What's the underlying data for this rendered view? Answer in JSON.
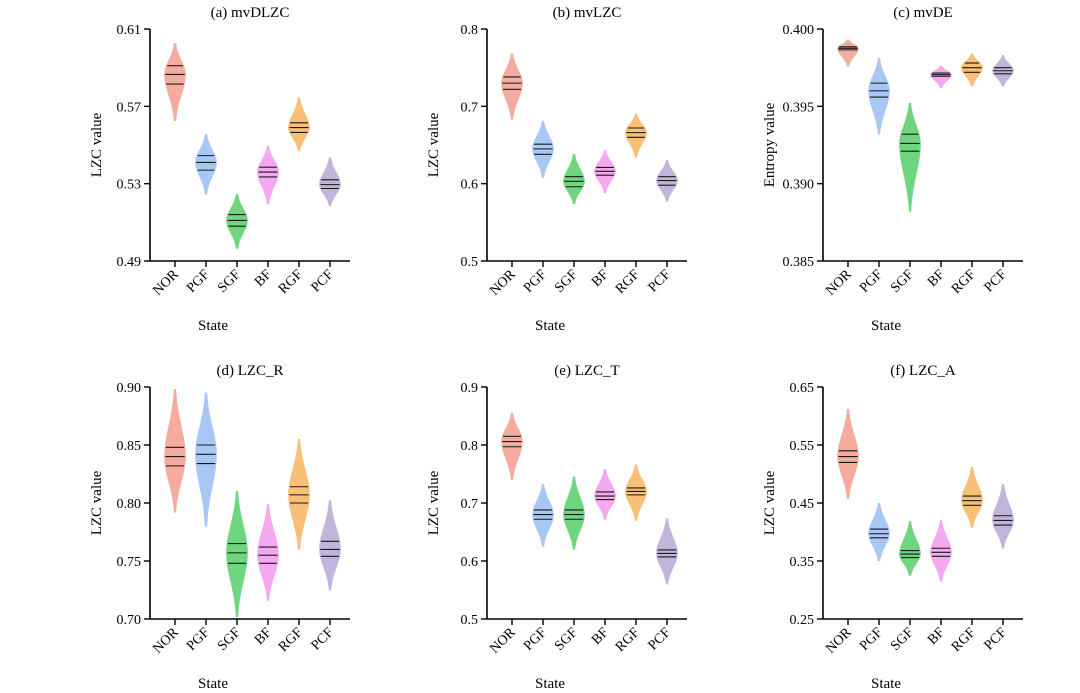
{
  "colors": {
    "NOR": "#f4aca1",
    "PGF": "#a9c7f5",
    "SGF": "#6fd57f",
    "BF": "#f3a8f0",
    "RGF": "#f8bf76",
    "PCF": "#c2b5dc"
  },
  "chart_data": [
    {
      "type": "violin",
      "title": "(a) mvDLZC",
      "xlabel": "State",
      "ylabel": "LZC value",
      "ylim": [
        0.49,
        0.61
      ],
      "yticks": [
        "0.49",
        "0.53",
        "0.57",
        "0.61"
      ],
      "categories": [
        "NOR",
        "PGF",
        "SGF",
        "BF",
        "RGF",
        "PCF"
      ],
      "series": [
        {
          "category": "NOR",
          "min": 0.5625,
          "q1": 0.5815,
          "median": 0.5865,
          "q3": 0.591,
          "max": 0.6025
        },
        {
          "category": "PGF",
          "min": 0.5245,
          "q1": 0.537,
          "median": 0.541,
          "q3": 0.5445,
          "max": 0.5555
        },
        {
          "category": "SGF",
          "min": 0.4965,
          "q1": 0.508,
          "median": 0.511,
          "q3": 0.514,
          "max": 0.5245
        },
        {
          "category": "BF",
          "min": 0.5195,
          "q1": 0.5335,
          "median": 0.536,
          "q3": 0.5385,
          "max": 0.5495
        },
        {
          "category": "RGF",
          "min": 0.547,
          "q1": 0.5565,
          "median": 0.559,
          "q3": 0.5615,
          "max": 0.5745
        },
        {
          "category": "PCF",
          "min": 0.5185,
          "q1": 0.5275,
          "median": 0.5295,
          "q3": 0.532,
          "max": 0.5435
        }
      ]
    },
    {
      "type": "violin",
      "title": "(b) mvLZC",
      "xlabel": "State",
      "ylabel": "LZC value",
      "ylim": [
        0.5,
        0.8
      ],
      "yticks": [
        "0.5",
        "0.6",
        "0.7",
        "0.8"
      ],
      "categories": [
        "NOR",
        "PGF",
        "SGF",
        "BF",
        "RGF",
        "PCF"
      ],
      "series": [
        {
          "category": "NOR",
          "min": 0.683,
          "q1": 0.722,
          "median": 0.73,
          "q3": 0.738,
          "max": 0.768
        },
        {
          "category": "PGF",
          "min": 0.608,
          "q1": 0.638,
          "median": 0.645,
          "q3": 0.651,
          "max": 0.681
        },
        {
          "category": "SGF",
          "min": 0.574,
          "q1": 0.596,
          "median": 0.603,
          "q3": 0.609,
          "max": 0.638
        },
        {
          "category": "BF",
          "min": 0.588,
          "q1": 0.611,
          "median": 0.616,
          "q3": 0.621,
          "max": 0.643
        },
        {
          "category": "RGF",
          "min": 0.634,
          "q1": 0.66,
          "median": 0.666,
          "q3": 0.672,
          "max": 0.69
        },
        {
          "category": "PCF",
          "min": 0.577,
          "q1": 0.598,
          "median": 0.604,
          "q3": 0.609,
          "max": 0.63
        }
      ]
    },
    {
      "type": "violin",
      "title": "(c) mvDE",
      "xlabel": "State",
      "ylabel": "Entropy value",
      "ylim": [
        0.385,
        0.4
      ],
      "yticks": [
        "0.385",
        "0.390",
        "0.395",
        "0.400"
      ],
      "categories": [
        "NOR",
        "PGF",
        "SGF",
        "BF",
        "RGF",
        "PCF"
      ],
      "series": [
        {
          "category": "NOR",
          "min": 0.3976,
          "q1": 0.39865,
          "median": 0.39875,
          "q3": 0.39885,
          "max": 0.3993
        },
        {
          "category": "PGF",
          "min": 0.3932,
          "q1": 0.3956,
          "median": 0.396,
          "q3": 0.3965,
          "max": 0.3981
        },
        {
          "category": "SGF",
          "min": 0.3882,
          "q1": 0.3921,
          "median": 0.3926,
          "q3": 0.3932,
          "max": 0.3952
        },
        {
          "category": "BF",
          "min": 0.3962,
          "q1": 0.39695,
          "median": 0.39705,
          "q3": 0.39715,
          "max": 0.3976
        },
        {
          "category": "RGF",
          "min": 0.3963,
          "q1": 0.3972,
          "median": 0.3975,
          "q3": 0.3978,
          "max": 0.3984
        },
        {
          "category": "PCF",
          "min": 0.3963,
          "q1": 0.3971,
          "median": 0.3973,
          "q3": 0.3975,
          "max": 0.3983
        }
      ]
    },
    {
      "type": "violin",
      "title": "(d) LZC_R",
      "xlabel": "State",
      "ylabel": "LZC value",
      "ylim": [
        0.7,
        0.9
      ],
      "yticks": [
        "0.70",
        "0.75",
        "0.80",
        "0.85",
        "0.90"
      ],
      "categories": [
        "NOR",
        "PGF",
        "SGF",
        "BF",
        "RGF",
        "PCF"
      ],
      "series": [
        {
          "category": "NOR",
          "min": 0.792,
          "q1": 0.832,
          "median": 0.84,
          "q3": 0.848,
          "max": 0.898
        },
        {
          "category": "PGF",
          "min": 0.78,
          "q1": 0.834,
          "median": 0.842,
          "q3": 0.85,
          "max": 0.895
        },
        {
          "category": "SGF",
          "min": 0.702,
          "q1": 0.748,
          "median": 0.757,
          "q3": 0.765,
          "max": 0.81
        },
        {
          "category": "BF",
          "min": 0.716,
          "q1": 0.748,
          "median": 0.755,
          "q3": 0.762,
          "max": 0.799
        },
        {
          "category": "RGF",
          "min": 0.76,
          "q1": 0.8,
          "median": 0.807,
          "q3": 0.814,
          "max": 0.855
        },
        {
          "category": "PCF",
          "min": 0.725,
          "q1": 0.754,
          "median": 0.76,
          "q3": 0.767,
          "max": 0.802
        }
      ]
    },
    {
      "type": "violin",
      "title": "(e) LZC_T",
      "xlabel": "State",
      "ylabel": "LZC value",
      "ylim": [
        0.5,
        0.9
      ],
      "yticks": [
        "0.5",
        "0.6",
        "0.7",
        "0.8",
        "0.9"
      ],
      "categories": [
        "NOR",
        "PGF",
        "SGF",
        "BF",
        "RGF",
        "PCF"
      ],
      "series": [
        {
          "category": "NOR",
          "min": 0.74,
          "q1": 0.797,
          "median": 0.806,
          "q3": 0.815,
          "max": 0.855
        },
        {
          "category": "PGF",
          "min": 0.625,
          "q1": 0.672,
          "median": 0.68,
          "q3": 0.688,
          "max": 0.732
        },
        {
          "category": "SGF",
          "min": 0.62,
          "q1": 0.672,
          "median": 0.68,
          "q3": 0.688,
          "max": 0.745
        },
        {
          "category": "BF",
          "min": 0.672,
          "q1": 0.706,
          "median": 0.712,
          "q3": 0.719,
          "max": 0.758
        },
        {
          "category": "RGF",
          "min": 0.67,
          "q1": 0.714,
          "median": 0.72,
          "q3": 0.726,
          "max": 0.766
        },
        {
          "category": "PCF",
          "min": 0.56,
          "q1": 0.607,
          "median": 0.613,
          "q3": 0.619,
          "max": 0.673
        }
      ]
    },
    {
      "type": "violin",
      "title": "(f) LZC_A",
      "xlabel": "State",
      "ylabel": "LZC value",
      "ylim": [
        0.25,
        0.65
      ],
      "yticks": [
        "0.25",
        "0.35",
        "0.45",
        "0.55",
        "0.65"
      ],
      "categories": [
        "NOR",
        "PGF",
        "SGF",
        "BF",
        "RGF",
        "PCF"
      ],
      "series": [
        {
          "category": "NOR",
          "min": 0.458,
          "q1": 0.52,
          "median": 0.53,
          "q3": 0.54,
          "max": 0.612
        },
        {
          "category": "PGF",
          "min": 0.35,
          "q1": 0.39,
          "median": 0.397,
          "q3": 0.405,
          "max": 0.45
        },
        {
          "category": "SGF",
          "min": 0.325,
          "q1": 0.356,
          "median": 0.362,
          "q3": 0.368,
          "max": 0.418
        },
        {
          "category": "BF",
          "min": 0.315,
          "q1": 0.358,
          "median": 0.365,
          "q3": 0.372,
          "max": 0.42
        },
        {
          "category": "RGF",
          "min": 0.408,
          "q1": 0.446,
          "median": 0.454,
          "q3": 0.462,
          "max": 0.512
        },
        {
          "category": "PCF",
          "min": 0.372,
          "q1": 0.412,
          "median": 0.42,
          "q3": 0.428,
          "max": 0.482
        }
      ]
    }
  ]
}
